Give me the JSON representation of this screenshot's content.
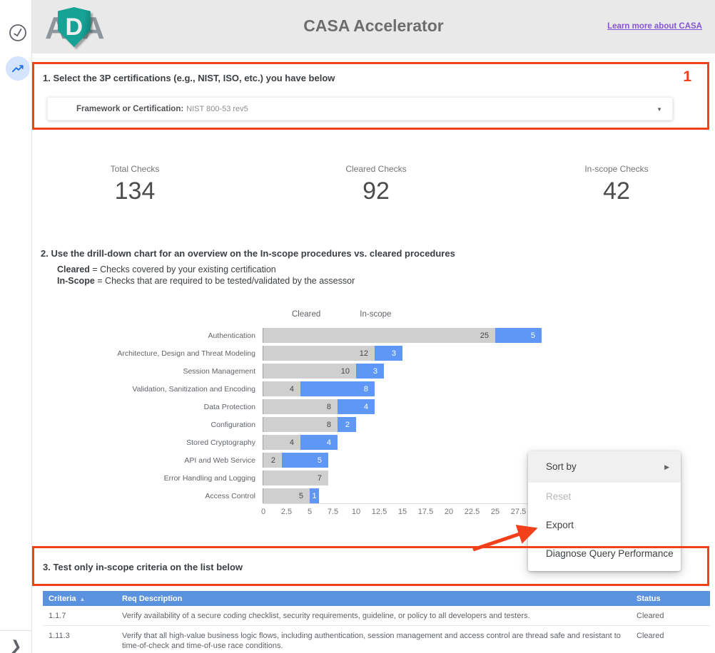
{
  "toolbar": {
    "icons": [
      {
        "name": "check-circle-icon"
      },
      {
        "name": "trending-up-icon"
      },
      {
        "name": "expand-chevron-icon"
      }
    ]
  },
  "header": {
    "logo": {
      "left_letter": "A",
      "shield_letter": "D",
      "right_letter": "A",
      "shield_color": "#16a295"
    },
    "title": "CASA Accelerator",
    "link": "Learn more about CASA"
  },
  "section1": {
    "heading": "1. Select the 3P certifications (e.g., NIST, ISO, etc.) you have below",
    "annotation_number": "1",
    "filter": {
      "label": "Framework or Certification:",
      "value": "NIST 800-53 rev5"
    }
  },
  "scorecards": [
    {
      "label": "Total Checks",
      "value": "134"
    },
    {
      "label": "Cleared Checks",
      "value": "92"
    },
    {
      "label": "In-scope Checks",
      "value": "42"
    }
  ],
  "section2": {
    "heading": "2. Use the drill-down chart for an overview on the In-scope procedures vs. cleared procedures",
    "lines": [
      {
        "term": "Cleared",
        "rest": " = Checks covered by your existing certification"
      },
      {
        "term": "In-Scope",
        "rest": " = Checks that are required to be tested/validated by the assessor"
      }
    ]
  },
  "chart_data": {
    "type": "bar",
    "orientation": "horizontal",
    "stacked": true,
    "categories": [
      "Authentication",
      "Architecture, Design and Threat Modeling",
      "Session Management",
      "Validation, Sanitization and Encoding",
      "Data Protection",
      "Configuration",
      "Stored Cryptography",
      "API and Web Service",
      "Error Handling and Logging",
      "Access Control"
    ],
    "series": [
      {
        "name": "Cleared",
        "color": "#cfcfcf",
        "values": [
          25,
          12,
          10,
          4,
          8,
          8,
          4,
          2,
          7,
          5
        ]
      },
      {
        "name": "In-scope",
        "color": "#5e97f6",
        "values": [
          5,
          3,
          3,
          8,
          4,
          2,
          4,
          5,
          0,
          1
        ]
      }
    ],
    "xlim": [
      0,
      30
    ],
    "x_ticks": [
      0,
      2.5,
      5,
      7.5,
      10,
      12.5,
      15,
      17.5,
      20,
      22.5,
      25,
      27.5
    ],
    "legend_position": "top",
    "grid": false
  },
  "context_menu": {
    "items": [
      {
        "label": "Sort by",
        "submenu": true,
        "disabled": false,
        "hovered": true
      },
      {
        "label": "Reset",
        "submenu": false,
        "disabled": true,
        "hovered": false
      },
      {
        "label": "Export",
        "submenu": false,
        "disabled": false,
        "hovered": false
      },
      {
        "label": "Diagnose Query Performance",
        "submenu": false,
        "disabled": false,
        "hovered": false
      }
    ]
  },
  "section3": {
    "heading": "3. Test only in-scope criteria on the list below"
  },
  "table": {
    "columns": [
      "Criteria",
      "Req Description",
      "Status"
    ],
    "sorted_column": "Criteria",
    "sort_direction": "asc",
    "rows": [
      {
        "criteria": "1.1.7",
        "description": "Verify availability of a secure coding checklist, security requirements, guideline, or policy to all developers and testers.",
        "status": "Cleared"
      },
      {
        "criteria": "1.11.3",
        "description": "Verify that all high-value business logic flows, including authentication, session management and access control are thread safe and resistant to time-of-check and time-of-use race conditions.",
        "status": "Cleared"
      }
    ]
  },
  "colors": {
    "annotation_red": "#f4401a",
    "bar_cleared": "#cfcfcf",
    "bar_inscope": "#5e97f6",
    "table_header_blue": "#5a92e0",
    "link_purple": "#8655d4",
    "header_gray": "#e9e9e9"
  }
}
